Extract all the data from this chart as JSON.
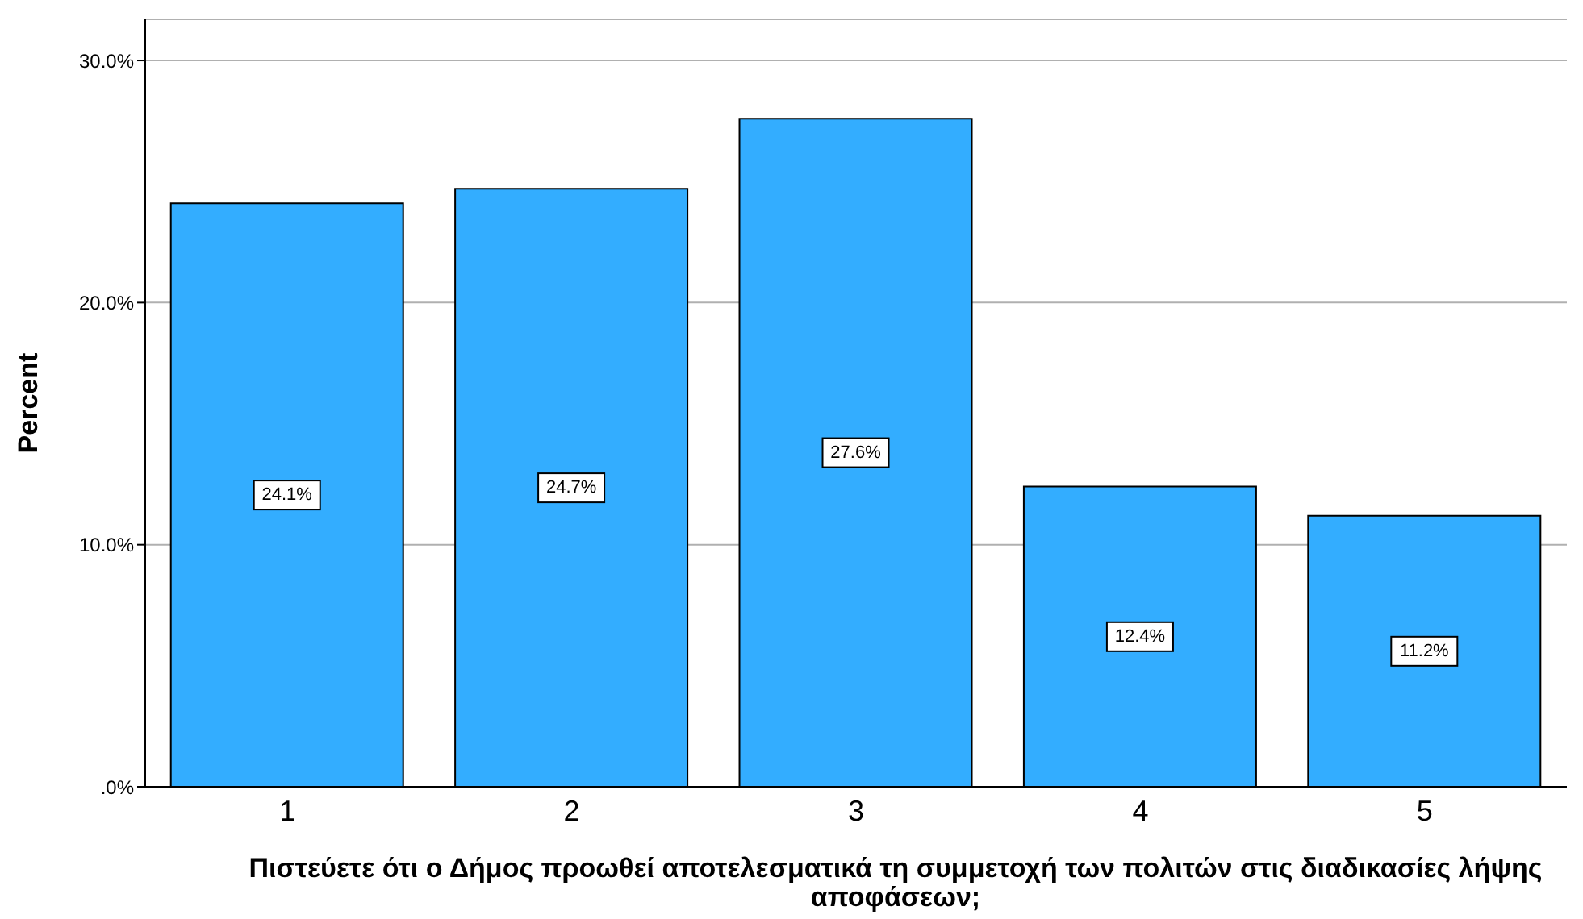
{
  "chart_data": {
    "type": "bar",
    "xlabel": "Πιστεύετε ότι ο Δήμος προωθεί αποτελεσματικά τη συμμετοχή των πολιτών στις διαδικασίες λήψης αποφάσεων;",
    "ylabel": "Percent",
    "categories": [
      "1",
      "2",
      "3",
      "4",
      "5"
    ],
    "values": [
      24.1,
      24.7,
      27.6,
      12.4,
      11.2
    ],
    "value_labels": [
      "24.1%",
      "24.7%",
      "27.6%",
      "12.4%",
      "11.2%"
    ],
    "color": "#33adff",
    "ylim": [
      0,
      31.7
    ],
    "yticks": [
      {
        "value": 0,
        "label": ".0%"
      },
      {
        "value": 10,
        "label": "10.0%"
      },
      {
        "value": 20,
        "label": "20.0%"
      },
      {
        "value": 30,
        "label": "30.0%"
      }
    ],
    "grid": "y",
    "legend": false
  }
}
